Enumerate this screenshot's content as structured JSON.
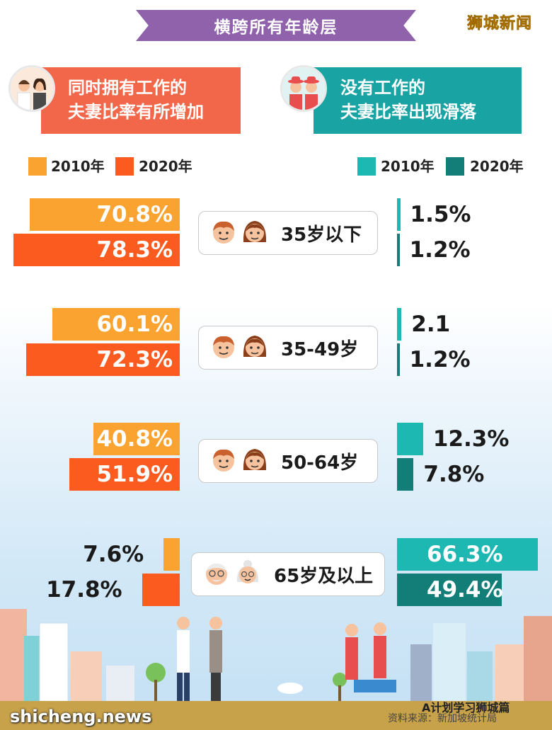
{
  "title": "横跨所有年龄层",
  "brand": "狮城新闻",
  "left_header": {
    "line1": "同时拥有工作的",
    "line2": "夫妻比率有所增加"
  },
  "right_header": {
    "line1": "没有工作的",
    "line2": "夫妻比率出现滑落"
  },
  "colors": {
    "left_2010": "#fba330",
    "left_2020": "#fb5b1f",
    "right_2010": "#1db8b1",
    "right_2020": "#137d78",
    "title_bg": "#8f62ab",
    "left_header_bg": "#f2674a",
    "right_header_bg": "#19a4a3"
  },
  "legend": {
    "y2010": "2010年",
    "y2020": "2020年"
  },
  "chart_data": [
    {
      "type": "bar",
      "orientation": "horizontal",
      "direction": "leftward",
      "title": "同时拥有工作的夫妻比率有所增加",
      "categories": [
        "35岁以下",
        "35-49岁",
        "50-64岁",
        "65岁及以上"
      ],
      "series": [
        {
          "name": "2010年",
          "values": [
            70.8,
            60.1,
            40.8,
            7.6
          ],
          "labels": [
            "70.8%",
            "60.1%",
            "40.8%",
            "7.6%"
          ]
        },
        {
          "name": "2020年",
          "values": [
            78.3,
            72.3,
            51.9,
            17.8
          ],
          "labels": [
            "78.3%",
            "72.3%",
            "51.9%",
            "17.8%"
          ]
        }
      ],
      "unit": "%"
    },
    {
      "type": "bar",
      "orientation": "horizontal",
      "direction": "rightward",
      "title": "没有工作的夫妻比率出现滑落",
      "categories": [
        "35岁以下",
        "35-49岁",
        "50-64岁",
        "65岁及以上"
      ],
      "series": [
        {
          "name": "2010年",
          "values": [
            1.5,
            2.1,
            12.3,
            66.3
          ],
          "labels": [
            "1.5%",
            "2.1",
            "12.3%",
            "66.3%"
          ]
        },
        {
          "name": "2020年",
          "values": [
            1.2,
            1.2,
            7.8,
            49.4
          ],
          "labels": [
            "1.2%",
            "1.2%",
            "7.8%",
            "49.4%"
          ]
        }
      ],
      "unit": "%"
    }
  ],
  "groups": [
    {
      "label": "35岁以下",
      "faces": "young"
    },
    {
      "label": "35-49岁",
      "faces": "young"
    },
    {
      "label": "50-64岁",
      "faces": "young"
    },
    {
      "label": "65岁及以上",
      "faces": "elderly"
    }
  ],
  "footer": {
    "site_logo": "shicheng.news",
    "wechat_tag": "A计划学习狮城篇",
    "source": "资料来源：新加坡统计局"
  }
}
